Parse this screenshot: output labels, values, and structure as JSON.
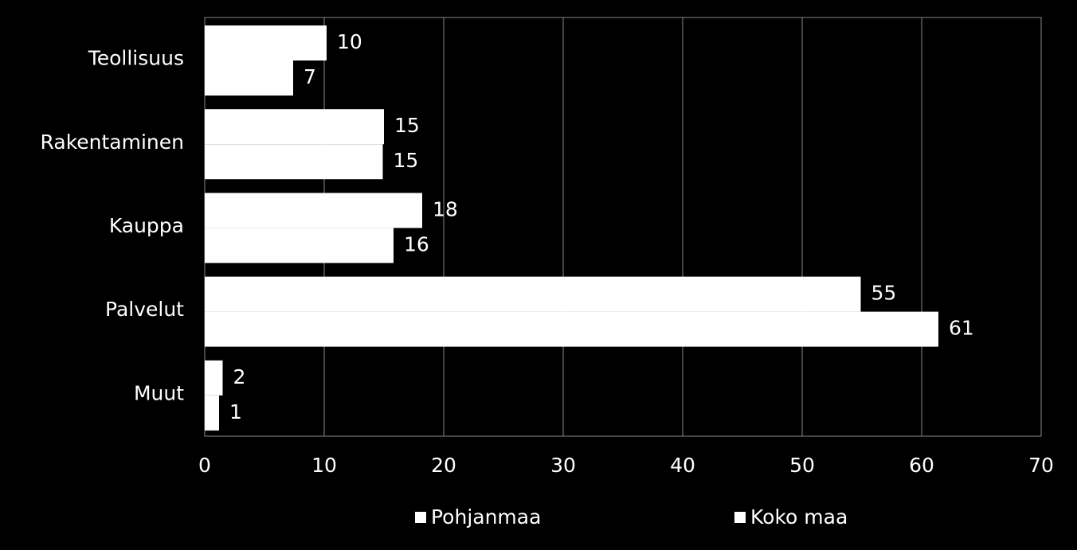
{
  "chart_data": {
    "type": "hbar",
    "categories": [
      "Teollisuus",
      "Rakentaminen",
      "Kauppa",
      "Palvelut",
      "Muut"
    ],
    "series": [
      {
        "name": "Pohjanmaa",
        "color": "#ffffff",
        "values": [
          10.2,
          15,
          18.2,
          54.9,
          1.5
        ],
        "value_labels": [
          "10",
          "15",
          "18",
          "55",
          "2"
        ]
      },
      {
        "name": "Koko maa",
        "color": "#ffffff",
        "values": [
          7.4,
          14.9,
          15.8,
          61.4,
          1.2
        ],
        "value_labels": [
          "7",
          "15",
          "16",
          "61",
          "1"
        ]
      }
    ],
    "xlim": [
      0,
      70
    ],
    "xticks": [
      0,
      10,
      20,
      30,
      40,
      50,
      60,
      70
    ],
    "grid": true,
    "legend": "bottom"
  }
}
